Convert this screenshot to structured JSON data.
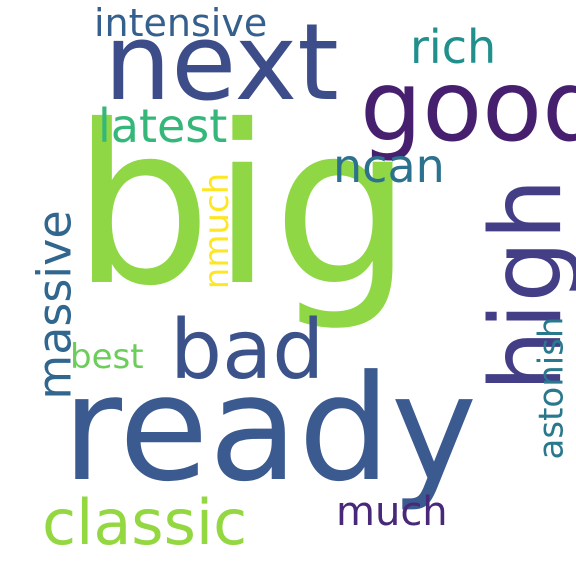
{
  "words": {
    "big": {
      "text": "big",
      "color": "#8fd744",
      "orientation": "horizontal"
    },
    "ready": {
      "text": "ready",
      "color": "#3b5a8f",
      "orientation": "horizontal"
    },
    "next": {
      "text": "next",
      "color": "#3d4d8a",
      "orientation": "horizontal"
    },
    "good": {
      "text": "good",
      "color": "#471f6f",
      "orientation": "horizontal"
    },
    "high": {
      "text": "high",
      "color": "#433e85",
      "orientation": "vertical"
    },
    "bad": {
      "text": "bad",
      "color": "#3b528b",
      "orientation": "horizontal"
    },
    "classic": {
      "text": "classic",
      "color": "#93d741",
      "orientation": "horizontal"
    },
    "massive": {
      "text": "massive",
      "color": "#31668e",
      "orientation": "vertical"
    },
    "intensive": {
      "text": "intensive",
      "color": "#355f8d",
      "orientation": "horizontal"
    },
    "rich": {
      "text": "rich",
      "color": "#21908d",
      "orientation": "horizontal"
    },
    "latest": {
      "text": "latest",
      "color": "#35b779",
      "orientation": "horizontal"
    },
    "ncan": {
      "text": "ncan",
      "color": "#2c728e",
      "orientation": "horizontal"
    },
    "nmuch": {
      "text": "nmuch",
      "color": "#fde725",
      "orientation": "vertical"
    },
    "best": {
      "text": "best",
      "color": "#6ccd5a",
      "orientation": "horizontal"
    },
    "astonish": {
      "text": "astonish",
      "color": "#2a788e",
      "orientation": "vertical"
    },
    "much": {
      "text": "much",
      "color": "#482878",
      "orientation": "horizontal"
    }
  }
}
